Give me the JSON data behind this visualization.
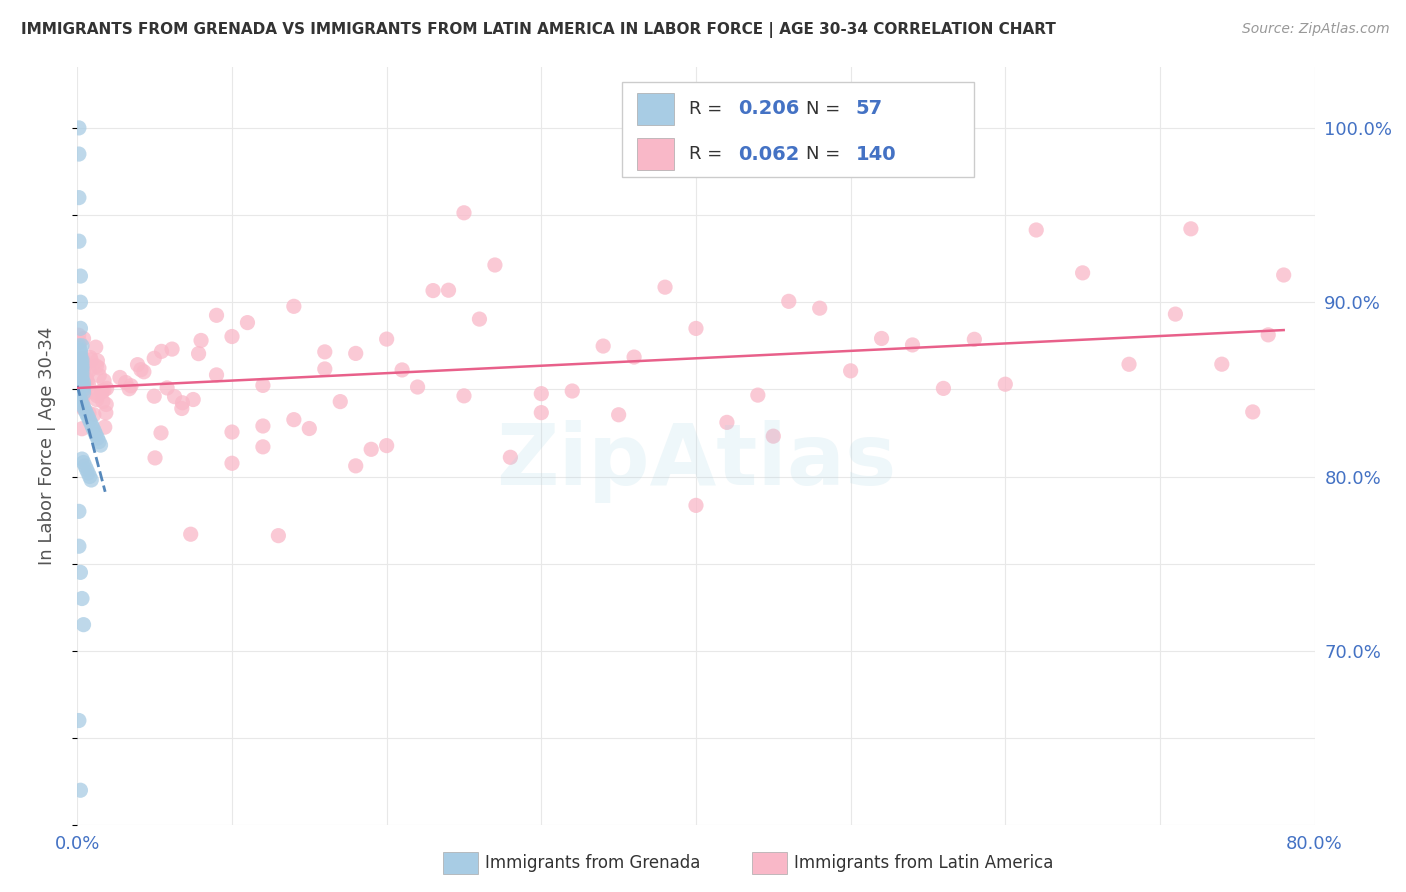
{
  "title": "IMMIGRANTS FROM GRENADA VS IMMIGRANTS FROM LATIN AMERICA IN LABOR FORCE | AGE 30-34 CORRELATION CHART",
  "source": "Source: ZipAtlas.com",
  "ylabel": "In Labor Force | Age 30-34",
  "x_min": 0.0,
  "x_max": 0.8,
  "y_min": 0.6,
  "y_max": 1.035,
  "grenada_R": 0.206,
  "grenada_N": 57,
  "latam_R": 0.062,
  "latam_N": 140,
  "grenada_color": "#a8cce4",
  "latam_color": "#f9b8c8",
  "trendline_grenada_color": "#5588bb",
  "trendline_latam_color": "#e8608a",
  "background_color": "#ffffff",
  "watermark": "ZipAtlas",
  "tick_color": "#4472c4",
  "title_color": "#333333",
  "label_color": "#555555",
  "legend_border_color": "#cccccc",
  "grid_color": "#e8e8e8"
}
